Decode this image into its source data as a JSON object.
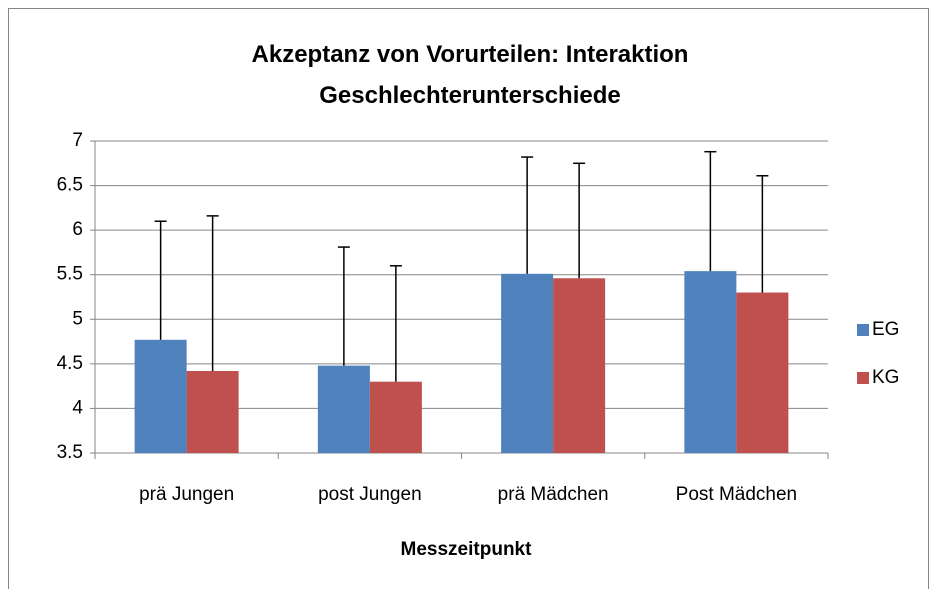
{
  "chart_data": {
    "type": "bar",
    "title": "Akzeptanz von Vorurteilen: Interaktion Geschlechterunterschiede",
    "x_label": "Messzeitpunkt",
    "categories": [
      "prä Jungen",
      "post Jungen",
      "prä Mädchen",
      "Post Mädchen"
    ],
    "series": [
      {
        "name": "EG",
        "color": "#4f81bd",
        "values": [
          4.77,
          4.48,
          5.51,
          5.54
        ],
        "errors": [
          1.33,
          1.33,
          1.31,
          1.34
        ]
      },
      {
        "name": "KG",
        "color": "#c0504d",
        "values": [
          4.42,
          4.3,
          5.46,
          5.3
        ],
        "errors": [
          1.74,
          1.3,
          1.29,
          1.31
        ]
      }
    ],
    "ylim": [
      3.5,
      7
    ],
    "yticks": [
      3.5,
      4,
      4.5,
      5,
      5.5,
      6,
      6.5,
      7
    ],
    "grid": true,
    "legend": "right"
  }
}
